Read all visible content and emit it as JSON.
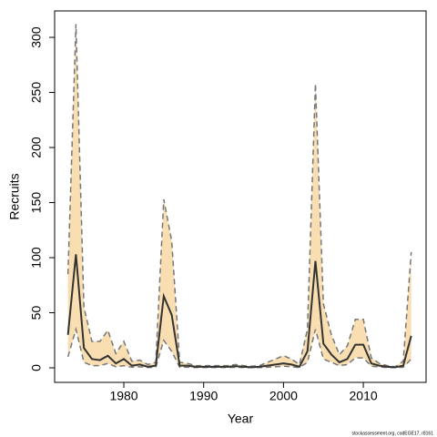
{
  "chart_data": {
    "type": "line",
    "xlabel": "Year",
    "ylabel": "Recruits",
    "footer": "stockassessment.org, codEGE17, r8161",
    "x": [
      1973,
      1974,
      1975,
      1976,
      1977,
      1978,
      1979,
      1980,
      1981,
      1982,
      1983,
      1984,
      1985,
      1986,
      1987,
      1988,
      1989,
      1990,
      1991,
      1992,
      1993,
      1994,
      1995,
      1996,
      1997,
      1998,
      1999,
      2000,
      2001,
      2002,
      2003,
      2004,
      2005,
      2006,
      2007,
      2008,
      2009,
      2010,
      2011,
      2012,
      2013,
      2014,
      2015,
      2016
    ],
    "values": [
      30,
      103,
      18,
      8,
      7,
      11,
      4,
      8,
      2,
      3,
      1,
      2,
      65,
      48,
      2,
      2,
      1,
      1,
      1,
      1,
      1,
      1.5,
      1,
      0.5,
      1,
      2,
      3,
      4,
      3,
      1,
      15,
      97,
      22,
      12,
      5,
      8,
      21,
      21,
      4,
      2,
      1,
      0.5,
      2,
      29
    ],
    "lower": [
      10,
      35,
      5,
      2,
      2,
      4,
      1,
      2,
      0.5,
      1,
      0.3,
      0.5,
      25,
      15,
      0.5,
      0.5,
      0.3,
      0.3,
      0.3,
      0.3,
      0.3,
      0.5,
      0.3,
      0.2,
      0.3,
      0.5,
      1,
      1.5,
      1,
      0.3,
      5,
      35,
      8,
      5,
      2,
      3,
      9,
      9,
      1.5,
      0.8,
      0.3,
      0.2,
      0.5,
      8
    ],
    "upper": [
      85,
      312,
      55,
      24,
      24,
      34,
      13,
      24,
      6,
      7,
      3,
      5,
      153,
      115,
      5,
      4,
      2,
      2,
      2,
      2,
      2,
      3,
      2,
      1.5,
      2,
      5,
      8,
      11,
      8,
      3,
      35,
      258,
      58,
      30,
      12,
      20,
      44,
      44,
      9,
      4,
      2,
      1,
      6,
      105
    ],
    "color": "#333333",
    "band_color": "#f8deb0",
    "bound_color": "#777777",
    "xlim": [
      1971.33,
      2017.86
    ],
    "ylim": [
      -13.2,
      324
    ],
    "xticks": [
      1980,
      1990,
      2000,
      2010
    ],
    "yticks": [
      0,
      50,
      100,
      150,
      200,
      250,
      300
    ]
  }
}
